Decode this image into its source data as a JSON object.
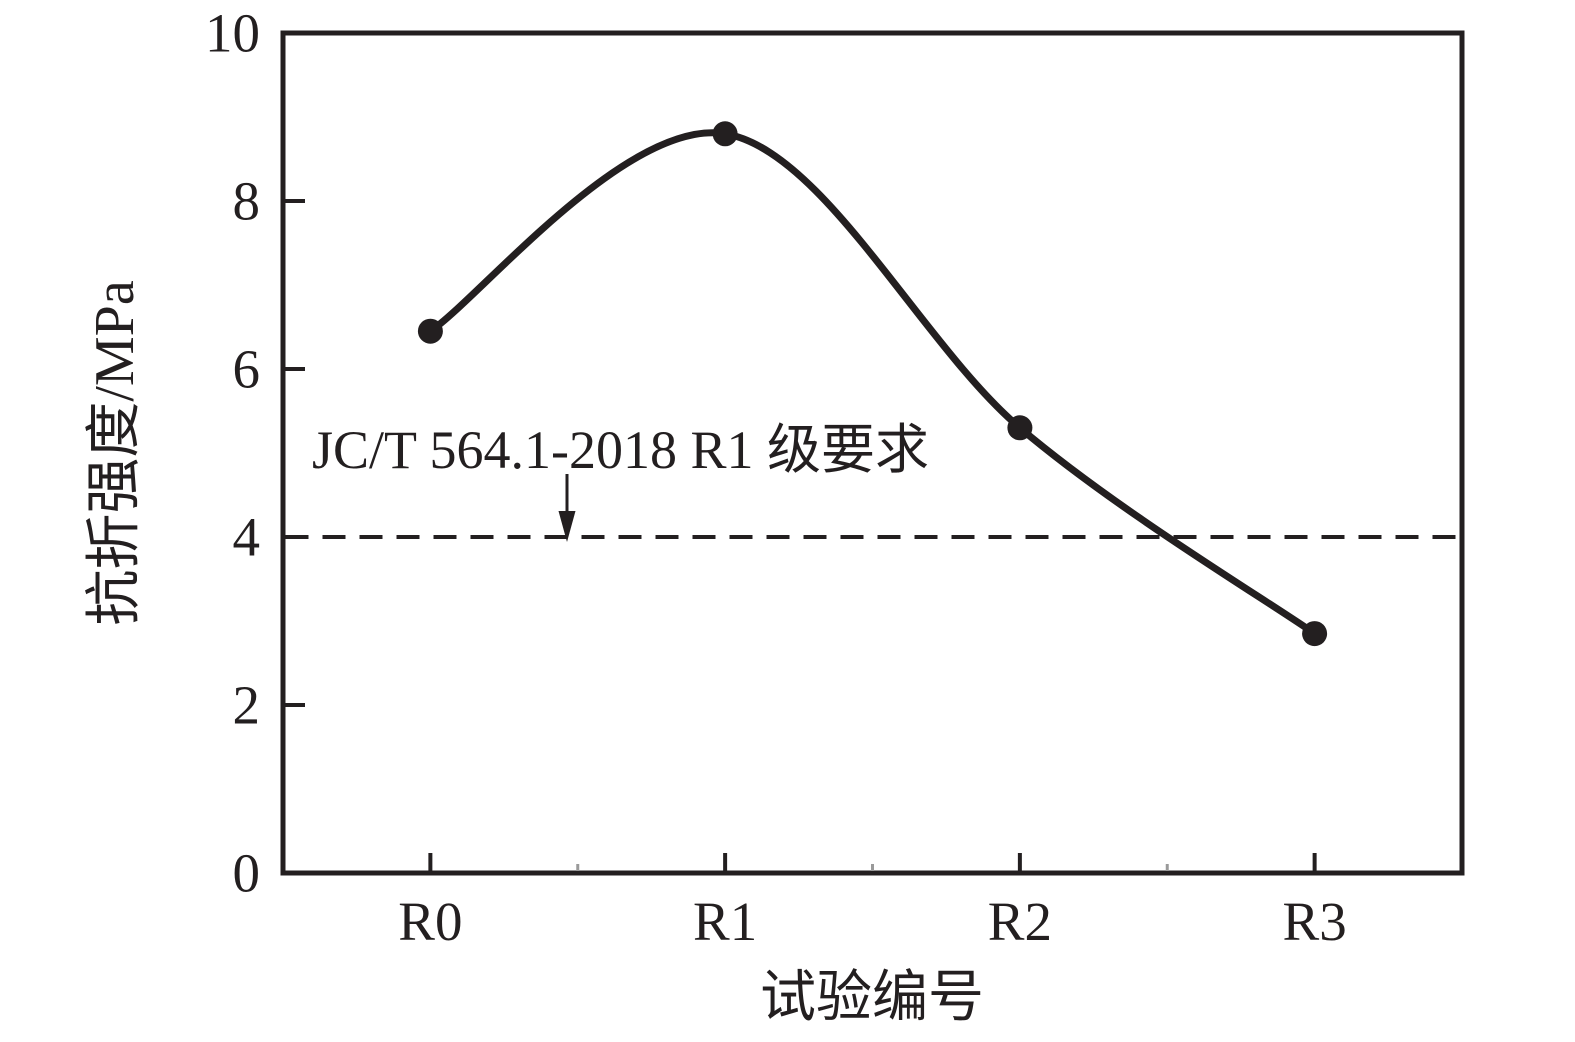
{
  "figure": {
    "background": "#ffffff",
    "ink_color": "#231f20",
    "minor_tick_color": "#9a9a9a"
  },
  "chart_data": {
    "type": "line",
    "categories": [
      "R0",
      "R1",
      "R2",
      "R3"
    ],
    "series": [
      {
        "name": "抗折强度",
        "values": [
          6.45,
          8.8,
          5.3,
          2.85
        ]
      }
    ],
    "title": "",
    "xlabel": "试验编号",
    "ylabel": "抗折强度/MPa",
    "ylim": [
      0,
      10
    ],
    "yticks": [
      0,
      2,
      4,
      6,
      8,
      10
    ],
    "grid": false,
    "legend_position": "none",
    "line_style": "smooth",
    "marker": "filled-circle",
    "threshold": {
      "value": 4,
      "style": "dashed",
      "label": "JC/T 564.1-2018 R1 级要求"
    }
  }
}
